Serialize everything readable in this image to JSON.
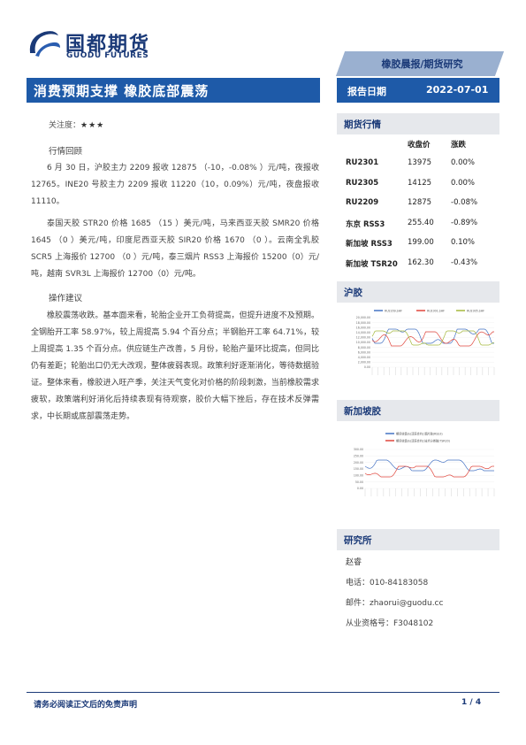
{
  "brand": {
    "name_cn": "国都期货",
    "name_en": "GUODU FUTURES"
  },
  "report_tag": "橡胶晨报/期货研究",
  "title": "消费预期支撑 橡胶底部震荡",
  "report_date": {
    "label": "报告日期",
    "value": "2022-07-01"
  },
  "attention": {
    "label": "关注度：",
    "stars": "★★★"
  },
  "review": {
    "heading": "行情回顾",
    "paragraphs": [
      "6 月 30 日，沪胶主力 2209 报收 12875 （-10，-0.08% ）元/吨，夜报收 12765。INE20 号胶主力 2209 报收 11220（10，0.09%）元/吨，夜盘报收 11110。",
      "泰国天胶 STR20 价格 1685 （15 ）美元/吨，马来西亚天胶 SMR20 价格 1645 （0 ）美元/吨，印度尼西亚天胶 SIR20 价格 1670 （0 ）。云南全乳胶 SCR5 上海报价 12700 （0 ）元/吨，泰三烟片 RSS3 上海报价 15200（0）元/吨，越南 SVR3L 上海报价 12700（0）元/吨。"
    ]
  },
  "advice": {
    "heading": "操作建议",
    "paragraph": "橡胶震荡收跌。基本面来看，轮胎企业开工负荷提高，但提升进度不及预期。全钢胎开工率 58.97%，较上周提高 5.94 个百分点；半钢胎开工率 64.71%，较上周提高 1.35 个百分点。供应链生产改善，5 月份，轮胎产量环比提高，但同比仍有差距；轮胎出口仍无大改观，整体疲弱表现。政策利好逐渐消化，等待数据验证。整体来看，橡胶进入旺产季，关注天气变化对价格的阶段刺激，当前橡胶需求疲软，政策端利好消化后持续表现有待观察，胶价大幅下挫后，存在技术反弹需求，中长期或底部震荡走势。"
  },
  "quotes": {
    "heading": "期货行情",
    "col_price": "收盘价",
    "col_change": "涨跌",
    "rows": [
      {
        "name": "RU2301",
        "price": "13975",
        "change": "0.00%"
      },
      {
        "name": "RU2305",
        "price": "14125",
        "change": "0.00%"
      },
      {
        "name": "RU2209",
        "price": "12875",
        "change": "-0.08%"
      },
      {
        "name": "东京 RSS3",
        "price": "255.40",
        "change": "-0.89%"
      },
      {
        "name": "新加坡 RSS3",
        "price": "199.00",
        "change": "0.10%"
      },
      {
        "name": "新加坡 TSR20",
        "price": "162.30",
        "change": "-0.43%"
      }
    ]
  },
  "chart_shanghai": {
    "heading": "沪胶",
    "legend": [
      "RU2209.SHF",
      "RU2301.SHF",
      "RU2305.SHF"
    ],
    "y_ticks": [
      "20,000.00",
      "18,000.00",
      "16,000.00",
      "14,000.00",
      "12,000.00",
      "10,000.00",
      "8,000.00",
      "6,000.00",
      "4,000.00",
      "2,000.00",
      "0.00"
    ],
    "colors": [
      "#4472c4",
      "#e0463c",
      "#a5b93c"
    ]
  },
  "chart_singapore": {
    "heading": "新加坡胶",
    "legend": [
      "期货收盘价(活跃合约):烟片胶(RSS3)",
      "期货收盘价(活跃合约):技术分类胶(TSR20)"
    ],
    "y_ticks": [
      "300.00",
      "250.00",
      "200.00",
      "150.00",
      "100.00",
      "50.00",
      "0.00"
    ],
    "colors": [
      "#4472c4",
      "#e0463c"
    ]
  },
  "research": {
    "heading": "研究所",
    "name": "赵睿",
    "phone": "电话：010-84183058",
    "email": "邮件：zhaorui@guodu.cc",
    "license": "从业资格号：F3048102"
  },
  "footer": {
    "disclaimer": "请务必阅读正文后的免责声明",
    "page": "1 / 4"
  }
}
